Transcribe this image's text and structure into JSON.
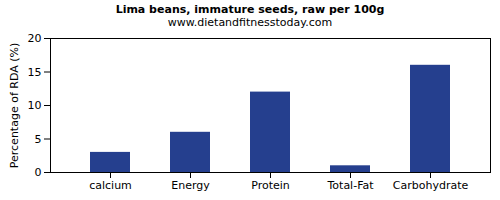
{
  "chart_data": {
    "type": "bar",
    "title": "Lima beans, immature seeds, raw per 100g",
    "subtitle": "www.dietandfitnesstoday.com",
    "ylabel": "Percentage of RDA (%)",
    "categories": [
      "calcium",
      "Energy",
      "Protein",
      "Total-Fat",
      "Carbohydrate"
    ],
    "values": [
      3,
      6,
      12,
      1,
      16
    ],
    "color": "#253f8e",
    "ylim": [
      0,
      20
    ],
    "yticks": [
      0,
      5,
      10,
      15,
      20
    ],
    "grid": false
  }
}
